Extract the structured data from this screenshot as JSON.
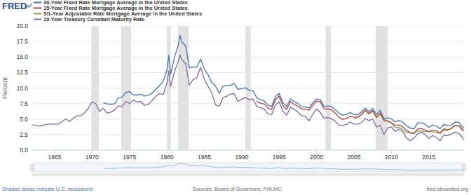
{
  "chart_data": {
    "type": "line",
    "logo": "FRED",
    "y_label": "Percent",
    "note": "Shaded areas indicate U.S. recessions",
    "source": "Sources: Board of Governors, FHLMC",
    "url": "fred.stlouisfed.org",
    "grid": true,
    "legend": "top-left",
    "xlim": [
      1962,
      2019.7
    ],
    "xticks": [
      1965,
      1970,
      1975,
      1980,
      1985,
      1990,
      1995,
      2000,
      2005,
      2010,
      2015
    ],
    "ylim": [
      0,
      20
    ],
    "yticks": [
      {
        "value": 0,
        "label": "0.0"
      },
      {
        "value": 2.5,
        "label": "2.5"
      },
      {
        "value": 5,
        "label": "5.0"
      },
      {
        "value": 7.5,
        "label": "7.5"
      },
      {
        "value": 10,
        "label": "10.0"
      },
      {
        "value": 12.5,
        "label": "12.5"
      },
      {
        "value": 15,
        "label": "15.0"
      },
      {
        "value": 17.5,
        "label": "17.5"
      },
      {
        "value": 20,
        "label": "20.0"
      }
    ],
    "recessions": [
      [
        1969.9,
        1970.9
      ],
      [
        1973.9,
        1975.2
      ],
      [
        1980.0,
        1980.5
      ],
      [
        1981.5,
        1982.9
      ],
      [
        1990.5,
        1991.2
      ],
      [
        2001.2,
        2001.9
      ],
      [
        2007.9,
        2009.5
      ]
    ],
    "x": [
      1962.0,
      1962.5,
      1963.0,
      1963.5,
      1964.0,
      1964.5,
      1965.0,
      1965.5,
      1966.0,
      1966.5,
      1967.0,
      1967.5,
      1968.0,
      1968.5,
      1969.0,
      1969.5,
      1970.0,
      1970.5,
      1971.0,
      1971.5,
      1972.0,
      1972.5,
      1973.0,
      1973.5,
      1974.0,
      1974.5,
      1975.0,
      1975.5,
      1976.0,
      1976.5,
      1977.0,
      1977.5,
      1978.0,
      1978.5,
      1979.0,
      1979.5,
      1980.0,
      1980.25,
      1980.5,
      1981.0,
      1981.5,
      1981.75,
      1982.0,
      1982.5,
      1983.0,
      1983.5,
      1984.0,
      1984.5,
      1985.0,
      1985.5,
      1986.0,
      1986.5,
      1987.0,
      1987.5,
      1988.0,
      1988.5,
      1989.0,
      1989.5,
      1990.0,
      1990.5,
      1991.0,
      1991.5,
      1992.0,
      1992.5,
      1993.0,
      1993.5,
      1994.0,
      1994.5,
      1995.0,
      1995.5,
      1996.0,
      1996.5,
      1997.0,
      1997.5,
      1998.0,
      1998.5,
      1999.0,
      1999.5,
      2000.0,
      2000.5,
      2001.0,
      2001.5,
      2002.0,
      2002.5,
      2003.0,
      2003.5,
      2004.0,
      2004.5,
      2005.0,
      2005.5,
      2006.0,
      2006.5,
      2007.0,
      2007.5,
      2008.0,
      2008.5,
      2009.0,
      2009.5,
      2010.0,
      2010.5,
      2011.0,
      2011.5,
      2012.0,
      2012.5,
      2013.0,
      2013.5,
      2014.0,
      2014.5,
      2015.0,
      2015.5,
      2016.0,
      2016.5,
      2017.0,
      2017.5,
      2018.0,
      2018.5,
      2019.0,
      2019.5,
      2019.67
    ],
    "series": [
      {
        "name": "30-Year Fixed Rate Mortgage Average in the United States",
        "color": "#4572a7",
        "values": [
          null,
          null,
          null,
          null,
          null,
          null,
          null,
          null,
          null,
          null,
          null,
          null,
          null,
          null,
          null,
          null,
          null,
          null,
          null,
          7.65,
          7.44,
          7.4,
          7.44,
          8.4,
          8.54,
          9.28,
          9.43,
          8.9,
          8.87,
          8.99,
          8.72,
          8.84,
          9.13,
          9.74,
          10.39,
          11.09,
          12.88,
          15.28,
          12.25,
          14.9,
          16.83,
          18.45,
          17.4,
          16.8,
          13.25,
          13.39,
          13.37,
          14.67,
          13.08,
          12.13,
          10.88,
          10.31,
          9.2,
          10.28,
          10.43,
          10.43,
          10.73,
          9.78,
          9.9,
          10.04,
          9.64,
          9.58,
          8.43,
          8.11,
          7.91,
          7.21,
          7.06,
          8.61,
          9.15,
          7.61,
          7.03,
          8.25,
          7.82,
          7.53,
          6.99,
          6.95,
          6.79,
          7.63,
          8.21,
          8.15,
          7.03,
          7.13,
          7.0,
          6.49,
          5.92,
          5.63,
          5.74,
          6.06,
          5.71,
          5.7,
          6.15,
          6.76,
          6.22,
          6.7,
          5.76,
          6.43,
          5.06,
          5.22,
          5.03,
          4.56,
          4.76,
          4.55,
          3.92,
          3.55,
          3.41,
          4.37,
          4.43,
          4.13,
          3.67,
          4.05,
          3.87,
          3.44,
          4.15,
          3.97,
          3.99,
          4.53,
          4.46,
          3.75,
          3.6
        ]
      },
      {
        "name": "15-Year Fixed Rate Mortgage Average in the United States",
        "color": "#aa4643",
        "values": [
          null,
          null,
          null,
          null,
          null,
          null,
          null,
          null,
          null,
          null,
          null,
          null,
          null,
          null,
          null,
          null,
          null,
          null,
          null,
          null,
          null,
          null,
          null,
          null,
          null,
          null,
          null,
          null,
          null,
          null,
          null,
          null,
          null,
          null,
          null,
          null,
          null,
          null,
          null,
          null,
          null,
          null,
          null,
          null,
          null,
          null,
          null,
          null,
          null,
          null,
          null,
          null,
          null,
          null,
          null,
          null,
          null,
          null,
          null,
          null,
          null,
          null,
          7.88,
          7.55,
          7.41,
          6.77,
          6.57,
          8.16,
          8.7,
          7.12,
          6.55,
          7.81,
          7.37,
          7.07,
          6.64,
          6.6,
          6.43,
          7.22,
          7.88,
          7.78,
          6.63,
          6.65,
          6.47,
          5.94,
          5.27,
          4.93,
          5.09,
          5.46,
          5.3,
          5.33,
          5.77,
          6.42,
          5.92,
          6.38,
          5.33,
          6.0,
          4.74,
          4.65,
          4.39,
          3.98,
          4.07,
          3.78,
          3.18,
          2.85,
          2.73,
          3.4,
          3.46,
          3.25,
          2.98,
          3.22,
          3.09,
          2.75,
          3.42,
          3.25,
          3.46,
          4.0,
          3.89,
          3.21,
          3.08
        ]
      },
      {
        "name": "5/1-Year Adjustable Rate Mortgage Average in the United States",
        "color": "#89a54e",
        "values": [
          null,
          null,
          null,
          null,
          null,
          null,
          null,
          null,
          null,
          null,
          null,
          null,
          null,
          null,
          null,
          null,
          null,
          null,
          null,
          null,
          null,
          null,
          null,
          null,
          null,
          null,
          null,
          null,
          null,
          null,
          null,
          null,
          null,
          null,
          null,
          null,
          null,
          null,
          null,
          null,
          null,
          null,
          null,
          null,
          null,
          null,
          null,
          null,
          null,
          null,
          null,
          null,
          null,
          null,
          null,
          null,
          null,
          null,
          null,
          null,
          null,
          null,
          null,
          null,
          null,
          null,
          null,
          null,
          null,
          null,
          null,
          null,
          null,
          null,
          null,
          null,
          null,
          null,
          null,
          null,
          null,
          null,
          null,
          null,
          null,
          null,
          null,
          null,
          5.1,
          5.25,
          5.7,
          6.35,
          5.8,
          6.25,
          5.2,
          5.8,
          5.0,
          4.7,
          4.4,
          3.6,
          3.7,
          3.3,
          2.85,
          2.75,
          2.65,
          3.1,
          3.05,
          3.0,
          2.95,
          2.95,
          2.85,
          2.7,
          3.2,
          3.15,
          3.55,
          3.9,
          3.95,
          3.45,
          3.35
        ]
      },
      {
        "name": "10-Year Treasury Constant Maturity Rate",
        "color": "#80699b",
        "values": [
          4.08,
          3.95,
          3.85,
          4.02,
          4.17,
          4.19,
          4.19,
          4.2,
          4.61,
          5.02,
          4.58,
          5.16,
          5.53,
          5.5,
          6.04,
          6.72,
          7.79,
          7.46,
          6.24,
          6.73,
          5.95,
          6.11,
          6.46,
          7.13,
          6.99,
          7.81,
          7.5,
          8.06,
          7.74,
          7.83,
          7.21,
          7.33,
          7.96,
          8.64,
          9.1,
          8.95,
          10.8,
          12.75,
          10.25,
          12.57,
          14.28,
          15.32,
          14.59,
          13.95,
          10.46,
          11.38,
          11.67,
          13.36,
          11.38,
          10.31,
          9.19,
          7.3,
          7.08,
          8.45,
          8.67,
          9.06,
          9.09,
          7.83,
          8.21,
          8.47,
          8.09,
          8.27,
          7.03,
          6.84,
          6.6,
          5.81,
          5.75,
          7.3,
          7.78,
          6.28,
          5.65,
          6.87,
          6.58,
          6.12,
          5.54,
          5.46,
          4.72,
          5.79,
          6.66,
          6.05,
          5.16,
          5.24,
          5.04,
          4.65,
          4.05,
          3.98,
          4.15,
          4.5,
          4.22,
          4.18,
          4.42,
          5.09,
          4.76,
          5.0,
          3.74,
          4.01,
          2.52,
          3.56,
          3.73,
          3.01,
          3.39,
          3.0,
          1.97,
          1.53,
          1.91,
          2.58,
          2.86,
          2.54,
          1.88,
          2.32,
          2.09,
          1.5,
          2.43,
          2.32,
          2.58,
          2.89,
          2.71,
          2.06,
          1.6
        ]
      }
    ]
  }
}
